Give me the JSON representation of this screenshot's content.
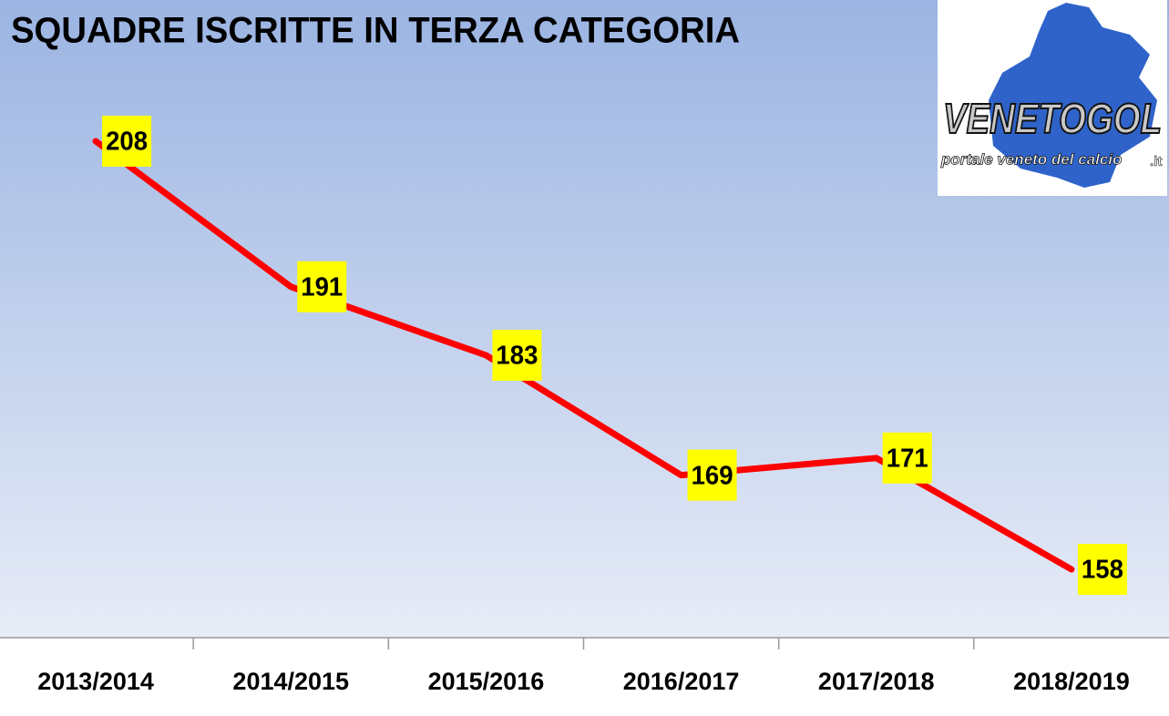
{
  "chart_data": {
    "type": "line",
    "title": "SQUADRE ISCRITTE IN TERZA CATEGORIA",
    "categories": [
      "2013/2014",
      "2014/2015",
      "2015/2016",
      "2016/2017",
      "2017/2018",
      "2018/2019"
    ],
    "series": [
      {
        "color": "#ff0000",
        "values": [
          208,
          191,
          183,
          169,
          171,
          158
        ]
      }
    ],
    "label_color": "#ffff00"
  },
  "logo": {
    "name": "VENETOGOL",
    "tagline": "portale veneto del calcio",
    "domain": ".it"
  }
}
